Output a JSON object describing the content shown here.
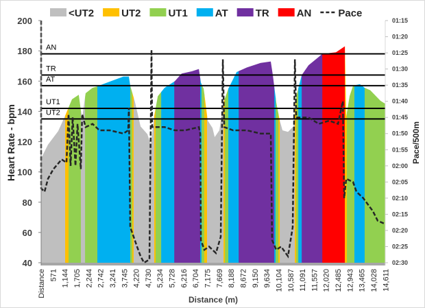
{
  "chart_data": {
    "type": "area",
    "xlabel": "Distance (m)",
    "ylabel": "Heart Rate - bpm",
    "y2label": "Pace/500m",
    "ylim": [
      40,
      200
    ],
    "y2lim": [
      "01:15",
      "02:30"
    ],
    "y_ticks": [
      "40",
      "60",
      "80",
      "100",
      "120",
      "140",
      "160",
      "180",
      "200"
    ],
    "y2_ticks": [
      "01:15",
      "01:20",
      "01:25",
      "01:30",
      "01:35",
      "01:40",
      "01:45",
      "01:50",
      "01:55",
      "02:00",
      "02:05",
      "02:10",
      "02:15",
      "02:20",
      "02:25",
      "02:30"
    ],
    "x_ticks": [
      "Distance",
      "571",
      "1,144",
      "1,705",
      "2,244",
      "2,742",
      "3,241",
      "3,745",
      "4,220",
      "4,730",
      "5,234",
      "5,728",
      "6,216",
      "6,704",
      "7,175",
      "7,669",
      "8,188",
      "8,672",
      "9,150",
      "9,634",
      "10,104",
      "10,587",
      "11,091",
      "11,557",
      "12,020",
      "12,485",
      "12,943",
      "13,465",
      "14,028",
      "14,611"
    ],
    "legend": {
      "position": "top",
      "items": [
        {
          "name": "<UT2",
          "color": "#bfbfbf",
          "kind": "area"
        },
        {
          "name": "UT2",
          "color": "#ffc000",
          "kind": "area"
        },
        {
          "name": "UT1",
          "color": "#92d050",
          "kind": "area"
        },
        {
          "name": "AT",
          "color": "#00b0f0",
          "kind": "area"
        },
        {
          "name": "TR",
          "color": "#7030a0",
          "kind": "area"
        },
        {
          "name": "AN",
          "color": "#ff0000",
          "kind": "area"
        },
        {
          "name": "Pace",
          "color": "#262626",
          "kind": "dash"
        }
      ]
    },
    "thresholds": [
      {
        "label": "AN",
        "hr": 178
      },
      {
        "label": "TR",
        "hr": 164
      },
      {
        "label": "AT",
        "hr": 157
      },
      {
        "label": "UT1",
        "hr": 142
      },
      {
        "label": "UT2",
        "hr": 135
      }
    ],
    "zone_colors": {
      "<UT2": "#bfbfbf",
      "UT2": "#ffc000",
      "UT1": "#92d050",
      "AT": "#00b0f0",
      "TR": "#7030a0",
      "AN": "#ff0000"
    },
    "zones": [
      [
        0,
        1055,
        "<UT2"
      ],
      [
        1055,
        1205,
        "UT2"
      ],
      [
        1205,
        1745,
        "UT1"
      ],
      [
        1745,
        1930,
        "<UT2"
      ],
      [
        1930,
        2470,
        "UT1"
      ],
      [
        2470,
        3915,
        "AT"
      ],
      [
        3915,
        4005,
        "UT1"
      ],
      [
        4005,
        4065,
        "UT2"
      ],
      [
        4065,
        4970,
        "<UT2"
      ],
      [
        4970,
        5030,
        "UT2"
      ],
      [
        5030,
        5275,
        "UT1"
      ],
      [
        5275,
        5850,
        "AT"
      ],
      [
        5850,
        6990,
        "TR"
      ],
      [
        6990,
        7050,
        "AT"
      ],
      [
        7050,
        7170,
        "UT1"
      ],
      [
        7170,
        7290,
        "UT2"
      ],
      [
        7290,
        8015,
        "<UT2"
      ],
      [
        8015,
        8075,
        "UT2"
      ],
      [
        8075,
        8225,
        "UT1"
      ],
      [
        8225,
        8680,
        "AT"
      ],
      [
        8680,
        10245,
        "TR"
      ],
      [
        10245,
        10305,
        "AT"
      ],
      [
        10305,
        10425,
        "UT1"
      ],
      [
        10425,
        10485,
        "UT2"
      ],
      [
        10485,
        11150,
        "<UT2"
      ],
      [
        11150,
        11210,
        "UT2"
      ],
      [
        11210,
        11300,
        "UT1"
      ],
      [
        11300,
        11450,
        "AT"
      ],
      [
        11450,
        12355,
        "TR"
      ],
      [
        12355,
        13345,
        "AN"
      ],
      [
        13345,
        13435,
        "UT2"
      ],
      [
        13435,
        13765,
        "UT1"
      ],
      [
        13765,
        14215,
        "AT"
      ],
      [
        14215,
        15120,
        "UT1"
      ]
    ],
    "heart_rate": [
      [
        0,
        109
      ],
      [
        300,
        118
      ],
      [
        750,
        127
      ],
      [
        1050,
        137
      ],
      [
        1355,
        148
      ],
      [
        1655,
        151
      ],
      [
        1745,
        141
      ],
      [
        1805,
        136
      ],
      [
        1955,
        152
      ],
      [
        2260,
        155.6
      ],
      [
        2470,
        156.5
      ],
      [
        2710,
        158
      ],
      [
        3165,
        160.5
      ],
      [
        3615,
        163
      ],
      [
        3855,
        163
      ],
      [
        3915,
        157
      ],
      [
        4125,
        146
      ],
      [
        4370,
        130
      ],
      [
        4670,
        125
      ],
      [
        4820,
        118
      ],
      [
        4970,
        137
      ],
      [
        5125,
        150
      ],
      [
        5425,
        155.6
      ],
      [
        5875,
        160
      ],
      [
        6175,
        165
      ],
      [
        6630,
        166.5
      ],
      [
        6930,
        168
      ],
      [
        7020,
        159
      ],
      [
        7140,
        155
      ],
      [
        7320,
        134
      ],
      [
        7530,
        129
      ],
      [
        7625,
        123
      ],
      [
        7830,
        127.5
      ],
      [
        8015,
        146
      ],
      [
        8225,
        155
      ],
      [
        8590,
        166
      ],
      [
        9040,
        169
      ],
      [
        9640,
        172
      ],
      [
        10090,
        173
      ],
      [
        10180,
        164
      ],
      [
        10330,
        146
      ],
      [
        10485,
        134
      ],
      [
        10605,
        127.5
      ],
      [
        10845,
        126.5
      ],
      [
        11085,
        130
      ],
      [
        11210,
        150
      ],
      [
        11450,
        164
      ],
      [
        11750,
        170.5
      ],
      [
        12200,
        176
      ],
      [
        12355,
        178
      ],
      [
        12955,
        179
      ],
      [
        13345,
        183
      ],
      [
        13405,
        136.5
      ],
      [
        13555,
        150
      ],
      [
        13705,
        157
      ],
      [
        14005,
        158
      ],
      [
        14215,
        155.6
      ],
      [
        14460,
        154
      ],
      [
        14910,
        147
      ],
      [
        15120,
        145
      ]
    ],
    "pace": [
      [
        0,
        "01:15"
      ],
      [
        0,
        "02:07"
      ],
      [
        150,
        "02:08"
      ],
      [
        300,
        "02:04"
      ],
      [
        540,
        "02:01"
      ],
      [
        905,
        "01:58"
      ],
      [
        1115,
        "01:59"
      ],
      [
        1205,
        "01:44"
      ],
      [
        1295,
        "02:00"
      ],
      [
        1385,
        "01:45"
      ],
      [
        1510,
        "02:00"
      ],
      [
        1600,
        "01:47"
      ],
      [
        1745,
        "02:01"
      ],
      [
        1805,
        "01:44"
      ],
      [
        1955,
        "01:48"
      ],
      [
        2260,
        "01:47"
      ],
      [
        2560,
        "01:49"
      ],
      [
        3015,
        "01:49"
      ],
      [
        3615,
        "01:50"
      ],
      [
        3825,
        "01:49"
      ],
      [
        3855,
        "01:42"
      ],
      [
        3915,
        "02:19"
      ],
      [
        4065,
        "02:22"
      ],
      [
        4215,
        "02:25"
      ],
      [
        4370,
        "02:28"
      ],
      [
        4520,
        "02:30"
      ],
      [
        4760,
        "02:29"
      ],
      [
        4850,
        "01:24"
      ],
      [
        4880,
        "01:48"
      ],
      [
        5425,
        "01:48"
      ],
      [
        5875,
        "01:49"
      ],
      [
        6330,
        "01:49"
      ],
      [
        6930,
        "01:48"
      ],
      [
        6990,
        "01:50"
      ],
      [
        7020,
        "02:23"
      ],
      [
        7170,
        "02:26"
      ],
      [
        7380,
        "02:25"
      ],
      [
        7680,
        "02:27"
      ],
      [
        7890,
        "02:22"
      ],
      [
        7985,
        "01:27"
      ],
      [
        8045,
        "01:48"
      ],
      [
        8440,
        "01:49"
      ],
      [
        9040,
        "01:49"
      ],
      [
        9640,
        "01:50"
      ],
      [
        10090,
        "01:50"
      ],
      [
        10150,
        "02:23"
      ],
      [
        10330,
        "02:26"
      ],
      [
        10545,
        "02:25"
      ],
      [
        10845,
        "02:28"
      ],
      [
        11055,
        "02:19"
      ],
      [
        11150,
        "01:27"
      ],
      [
        11210,
        "01:45"
      ],
      [
        11750,
        "01:45"
      ],
      [
        12200,
        "01:47"
      ],
      [
        12655,
        "01:46"
      ],
      [
        13045,
        "01:47"
      ],
      [
        13255,
        "01:40"
      ],
      [
        13315,
        "02:10"
      ],
      [
        13405,
        "02:04"
      ],
      [
        13705,
        "02:05"
      ],
      [
        13855,
        "02:08"
      ],
      [
        14155,
        "02:10"
      ],
      [
        14365,
        "02:12"
      ],
      [
        14575,
        "02:14"
      ],
      [
        14790,
        "02:17"
      ],
      [
        15120,
        "02:18"
      ]
    ]
  }
}
